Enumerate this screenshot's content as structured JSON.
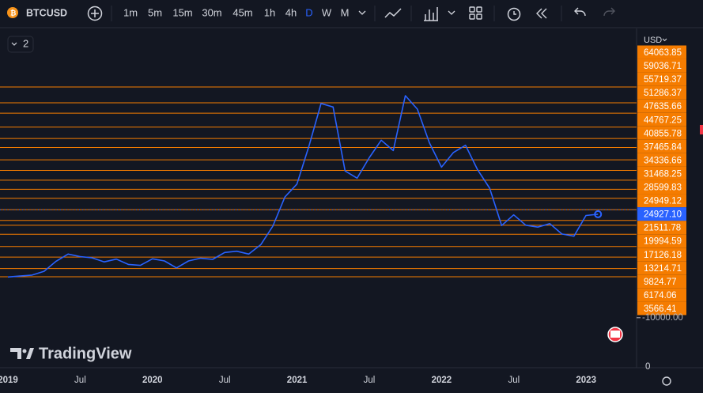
{
  "toolbar": {
    "symbol": "BTCUSD",
    "intervals": [
      "1m",
      "5m",
      "15m",
      "30m",
      "45m",
      "1h",
      "4h",
      "D",
      "W",
      "M"
    ],
    "active_interval": 7
  },
  "layout_badge": "2",
  "currency": "USD",
  "brand": "TradingView",
  "time_labels": [
    "2019",
    "Jul",
    "2020",
    "Jul",
    "2021",
    "Jul",
    "2022",
    "Jul",
    "2023"
  ],
  "bottom_label": 0,
  "chart_data": {
    "type": "line",
    "color": "#2962ff",
    "values": [
      3500,
      3800,
      4100,
      5300,
      8500,
      10800,
      10000,
      9600,
      8300,
      9200,
      7500,
      7200,
      9300,
      8600,
      6400,
      8600,
      9500,
      9100,
      11300,
      11700,
      10800,
      13800,
      19700,
      29000,
      33100,
      45200,
      58800,
      57700,
      37300,
      35000,
      41500,
      47100,
      43800,
      61300,
      57000,
      46300,
      38500,
      43200,
      45500,
      37700,
      31800,
      19900,
      23300,
      20000,
      19400,
      20500,
      17200,
      16500,
      23100,
      23500
    ],
    "ylim": [
      -24163,
      82216
    ],
    "level_color": "#f57c00",
    "levels": [
      64063.85,
      59036.71,
      55719.37,
      51286.37,
      47635.66,
      44767.25,
      40855.78,
      37465.84,
      34336.66,
      31468.25,
      28599.83,
      24949.12,
      21511.78,
      19994.59,
      17126.18,
      13214.71,
      9824.77,
      6174.06,
      3566.41
    ],
    "last_price": {
      "value": 24927.1,
      "label": "24927.10"
    },
    "axis_floor": {
      "value": -10000,
      "label": "-10000.00"
    }
  }
}
